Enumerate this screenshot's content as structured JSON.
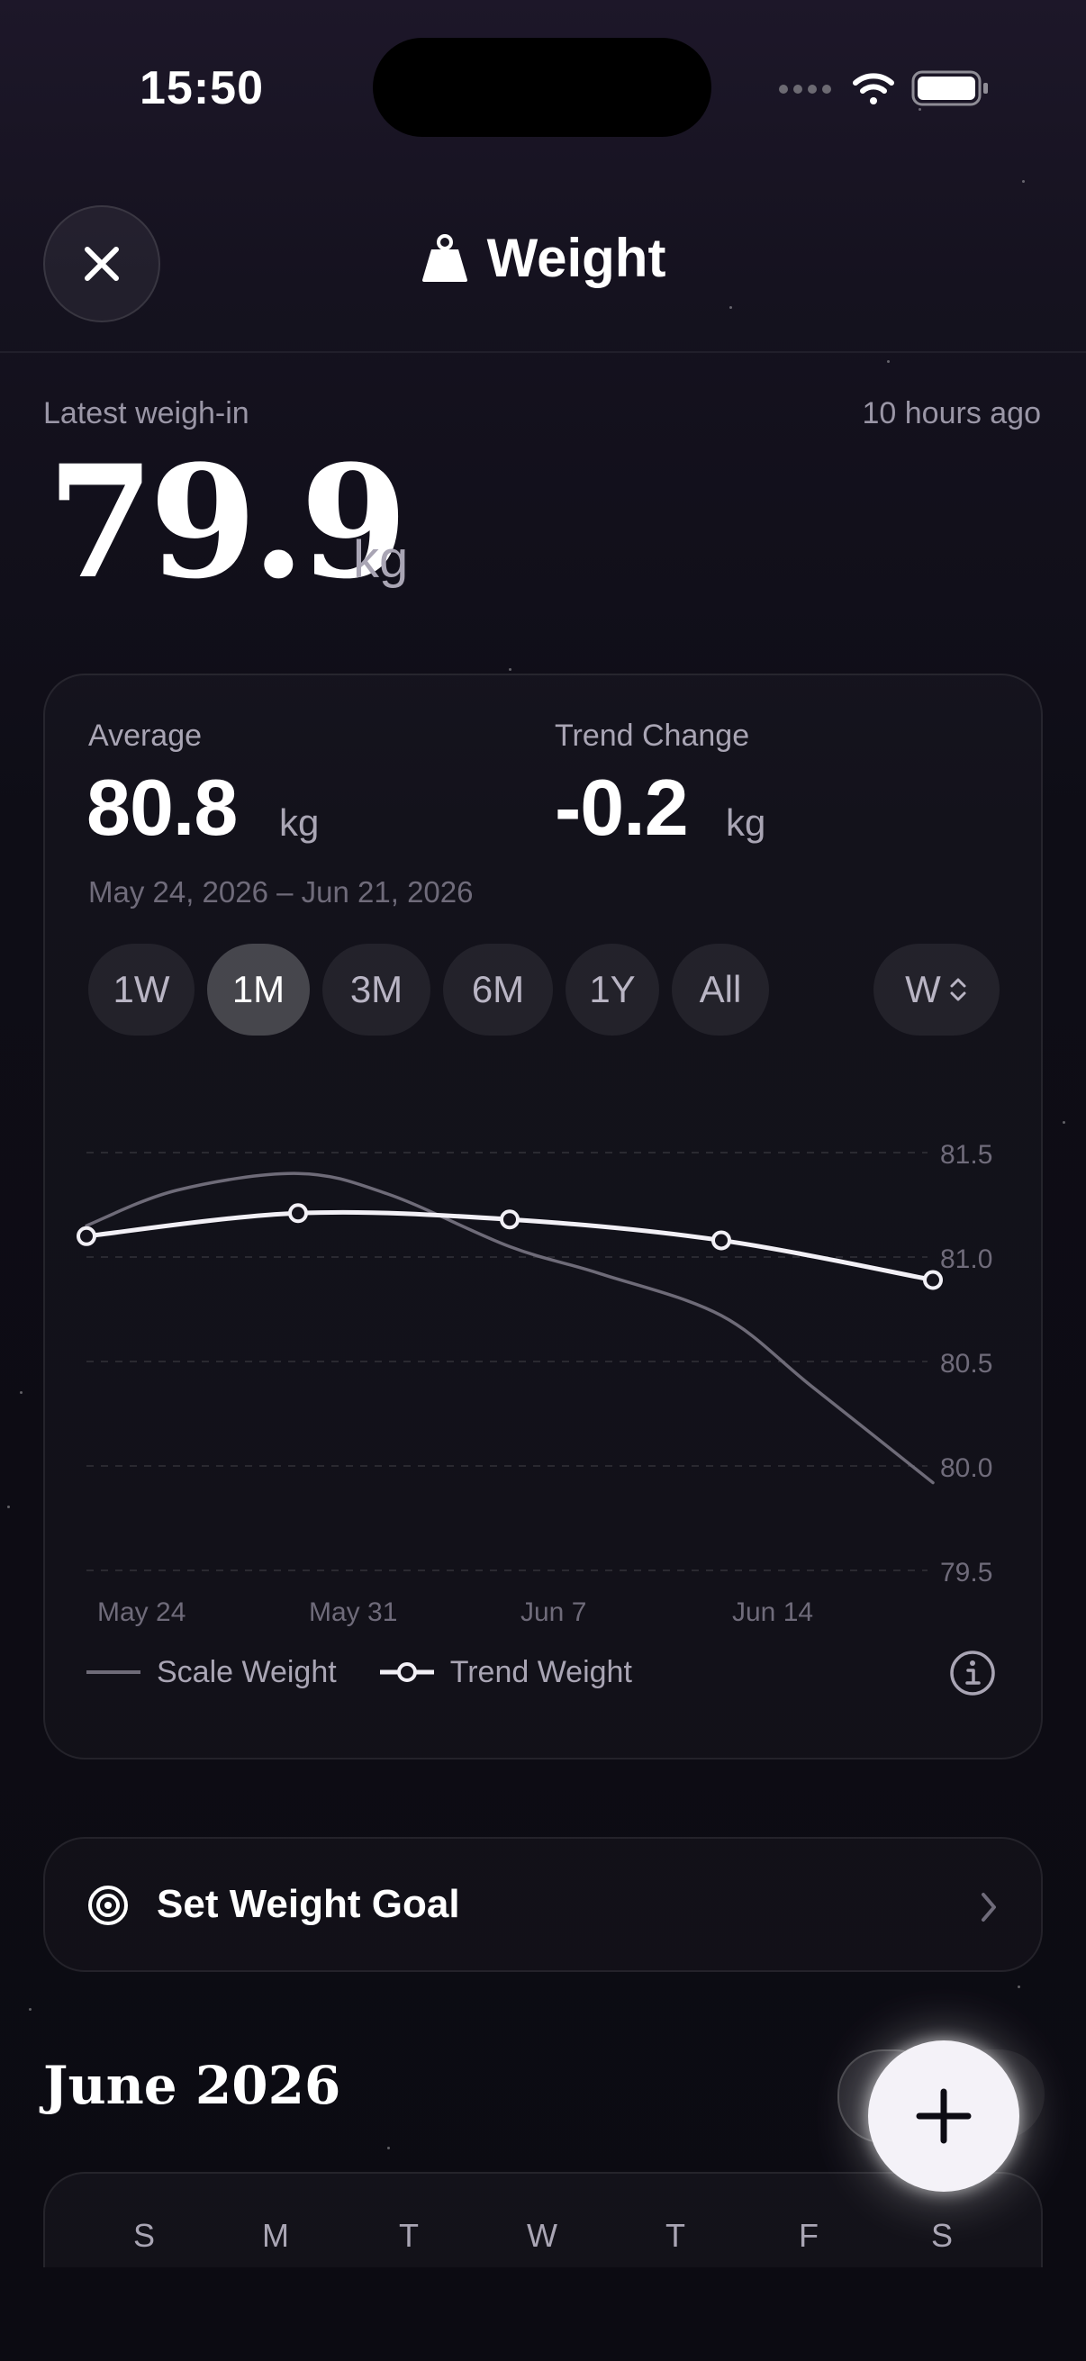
{
  "status_bar": {
    "time": "15:50"
  },
  "header": {
    "title": "Weight",
    "close_icon": "close-icon",
    "title_icon": "weight-icon"
  },
  "latest": {
    "label": "Latest weigh-in",
    "time_ago": "10 hours ago",
    "value": "79.9",
    "unit": "kg"
  },
  "stats": {
    "average_label": "Average",
    "average_value": "80.8",
    "average_unit": "kg",
    "trend_label": "Trend Change",
    "trend_value": "-0.2",
    "trend_unit": "kg",
    "date_range": "May 24, 2026 – Jun 21, 2026"
  },
  "ranges": {
    "items": [
      "1W",
      "1M",
      "3M",
      "6M",
      "1Y",
      "All"
    ],
    "selected": "1M",
    "aggregation": "W"
  },
  "chart_data": {
    "type": "line",
    "x_tick_labels": [
      "May 24",
      "May 31",
      "Jun 7",
      "Jun 14"
    ],
    "y_ticks": [
      81.5,
      81.0,
      80.5,
      80.0,
      79.5
    ],
    "y_tick_labels": [
      "81.5",
      "81.0",
      "80.5",
      "80.0",
      "79.5"
    ],
    "ylim": [
      79.5,
      81.5
    ],
    "grid": true,
    "series": [
      {
        "name": "Scale Weight",
        "color": "#6e6b78",
        "x": [
          "2026-05-24",
          "2026-05-27",
          "2026-05-31",
          "2026-06-03",
          "2026-06-07",
          "2026-06-10",
          "2026-06-14",
          "2026-06-17",
          "2026-06-21"
        ],
        "y": [
          81.15,
          81.32,
          81.4,
          81.3,
          81.05,
          80.92,
          80.72,
          80.38,
          79.92
        ]
      },
      {
        "name": "Trend Weight",
        "color": "#f2f0f6",
        "markers": true,
        "x": [
          "2026-05-24",
          "2026-05-31",
          "2026-06-07",
          "2026-06-14",
          "2026-06-21"
        ],
        "y": [
          81.1,
          81.21,
          81.18,
          81.08,
          80.89
        ]
      }
    ],
    "legend_position": "bottom-left"
  },
  "legend": {
    "scale_label": "Scale Weight",
    "trend_label": "Trend Weight"
  },
  "goal": {
    "label": "Set Weight Goal"
  },
  "calendar": {
    "month_title": "June 2026",
    "weekdays": [
      "S",
      "M",
      "T",
      "W",
      "T",
      "F",
      "S"
    ]
  },
  "colors": {
    "background": "#0d0c14",
    "accent": "#ffffff",
    "muted": "#a9a5b4"
  }
}
